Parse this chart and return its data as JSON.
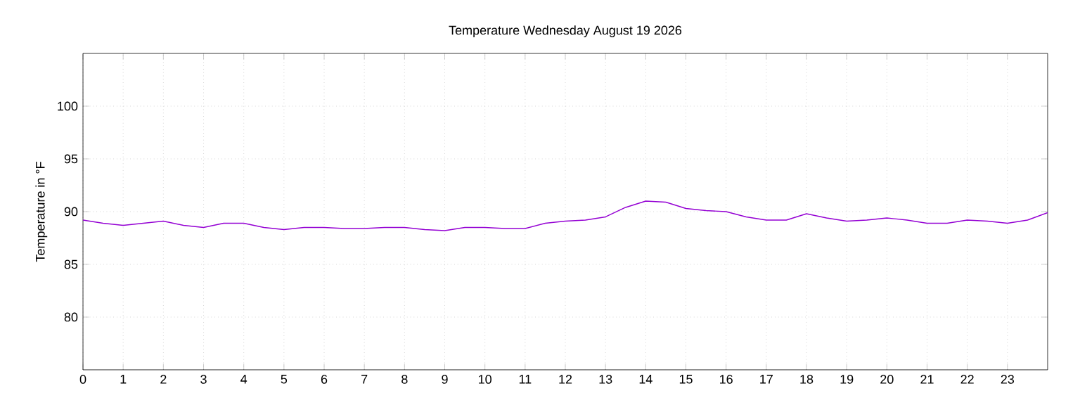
{
  "chart_data": {
    "type": "line",
    "title": "Temperature Wednesday August 19 2026",
    "ylabel": "Temperature in °F",
    "x": [
      0,
      0.5,
      1,
      1.5,
      2,
      2.5,
      3,
      3.5,
      4,
      4.5,
      5,
      5.5,
      6,
      6.5,
      7,
      7.5,
      8,
      8.5,
      9,
      9.5,
      10,
      10.5,
      11,
      11.5,
      12,
      12.5,
      13,
      13.5,
      14,
      14.5,
      15,
      15.5,
      16,
      16.5,
      17,
      17.5,
      18,
      18.5,
      19,
      19.5,
      20,
      20.5,
      21,
      21.5,
      22,
      22.5,
      23,
      23.5,
      24
    ],
    "series": [
      {
        "color": "#9400d3",
        "values": [
          89.2,
          88.9,
          88.7,
          88.9,
          89.1,
          88.7,
          88.5,
          88.9,
          88.9,
          88.5,
          88.3,
          88.5,
          88.5,
          88.4,
          88.4,
          88.5,
          88.5,
          88.3,
          88.2,
          88.5,
          88.5,
          88.4,
          88.4,
          88.9,
          89.1,
          89.2,
          89.5,
          90.4,
          91.0,
          90.9,
          90.3,
          90.1,
          90.0,
          89.5,
          89.2,
          89.2,
          89.8,
          89.4,
          89.1,
          89.2,
          89.4,
          89.2,
          88.9,
          88.9,
          89.2,
          89.1,
          88.9,
          89.2,
          89.9
        ]
      }
    ],
    "xlim": [
      0,
      24
    ],
    "xticks": [
      0,
      1,
      2,
      3,
      4,
      5,
      6,
      7,
      8,
      9,
      10,
      11,
      12,
      13,
      14,
      15,
      16,
      17,
      18,
      19,
      20,
      21,
      22,
      23
    ],
    "ylim": [
      75,
      105
    ],
    "yticks": [
      80,
      85,
      90,
      95,
      100
    ],
    "grid": true,
    "marker": "none",
    "line_style": "solid"
  }
}
